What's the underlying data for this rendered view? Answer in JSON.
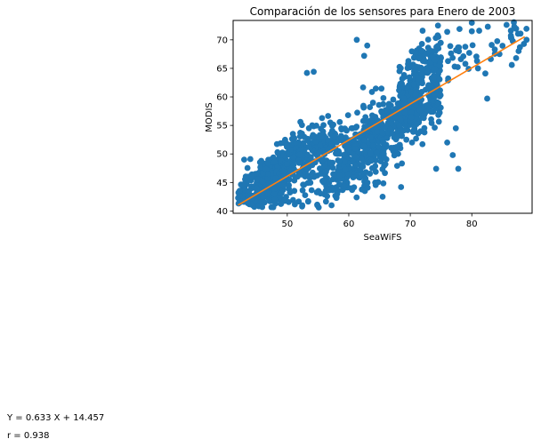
{
  "chart_data": {
    "type": "scatter",
    "title": "Comparación de los sensores para Enero de 2003",
    "xlabel": "SeaWiFS",
    "ylabel": "MODIS",
    "xlim": [
      41.2,
      89.8
    ],
    "ylim": [
      39.6,
      73.4
    ],
    "xticks": [
      50,
      60,
      70,
      80
    ],
    "yticks": [
      40,
      45,
      50,
      55,
      60,
      65,
      70
    ],
    "grid": false,
    "legend": null,
    "series": [
      {
        "kind": "scatter",
        "color": "#1f77b4",
        "clusters": [
          {
            "x_range": [
              42,
              50
            ],
            "y_center_at_x": [
              [
                42,
                41.5
              ],
              [
                46,
                43.5
              ],
              [
                50,
                46.0
              ]
            ],
            "spread": 2.0,
            "count": 260
          },
          {
            "x_range": [
              45,
              58
            ],
            "y_center_at_x": [
              [
                45,
                45.0
              ],
              [
                50,
                48.5
              ],
              [
                55,
                51.5
              ],
              [
                58,
                53.0
              ]
            ],
            "spread": 2.2,
            "count": 300
          },
          {
            "x_range": [
              58,
              75
            ],
            "y_center_at_x": [
              [
                58,
                48.5
              ],
              [
                62,
                51.5
              ],
              [
                66,
                54.0
              ],
              [
                70,
                57.5
              ],
              [
                75,
                61.5
              ]
            ],
            "spread": 3.0,
            "count": 520
          },
          {
            "x_range": [
              68,
              75
            ],
            "y_center_at_x": [
              [
                68,
                60.0
              ],
              [
                72,
                64.0
              ],
              [
                75,
                67.0
              ]
            ],
            "spread": 2.5,
            "count": 140
          },
          {
            "x_range": [
              76,
              89
            ],
            "y_center_at_x": [
              [
                76,
                66.0
              ],
              [
                82,
                68.5
              ],
              [
                86,
                71.0
              ],
              [
                89,
                71.5
              ]
            ],
            "spread": 2.5,
            "count": 45
          },
          {
            "x_range": [
              48,
              66
            ],
            "y_center_at_x": [
              [
                48,
                45.0
              ],
              [
                55,
                46.0
              ],
              [
                60,
                48.0
              ],
              [
                66,
                50.5
              ]
            ],
            "spread": 3.5,
            "count": 220
          }
        ],
        "outliers": [
          [
            61.3,
            70.0
          ],
          [
            62.5,
            67.2
          ],
          [
            53.2,
            64.2
          ],
          [
            54.3,
            64.4
          ],
          [
            63.0,
            69.0
          ],
          [
            65.5,
            42.5
          ],
          [
            68.5,
            44.2
          ],
          [
            74.2,
            47.4
          ],
          [
            77.8,
            47.4
          ],
          [
            76.0,
            52.0
          ],
          [
            76.9,
            49.8
          ],
          [
            77.4,
            54.5
          ],
          [
            82.5,
            59.7
          ],
          [
            82.2,
            64.1
          ],
          [
            81.0,
            65.0
          ],
          [
            84.5,
            67.5
          ],
          [
            86.5,
            65.6
          ],
          [
            87.2,
            66.8
          ],
          [
            80.0,
            71.5
          ],
          [
            81.2,
            71.6
          ],
          [
            82.6,
            72.3
          ],
          [
            88.9,
            70.0
          ],
          [
            86.9,
            72.3
          ],
          [
            80.0,
            73.0
          ],
          [
            78.0,
            71.9
          ],
          [
            76.0,
            71.4
          ],
          [
            72.0,
            71.6
          ],
          [
            76.5,
            68.9
          ],
          [
            74.5,
            72.5
          ],
          [
            48.0,
            42.0
          ],
          [
            58.0,
            42.3
          ],
          [
            57.2,
            41.0
          ],
          [
            43.0,
            49.0
          ],
          [
            44.0,
            49.1
          ]
        ]
      },
      {
        "kind": "line",
        "color": "#ff7f0e",
        "x": [
          42,
          88.6
        ],
        "y": [
          41.04,
          70.54
        ]
      }
    ]
  },
  "annotations": {
    "equation": "Y = 0.633 X + 14.457",
    "r_value": "r = 0.938"
  }
}
